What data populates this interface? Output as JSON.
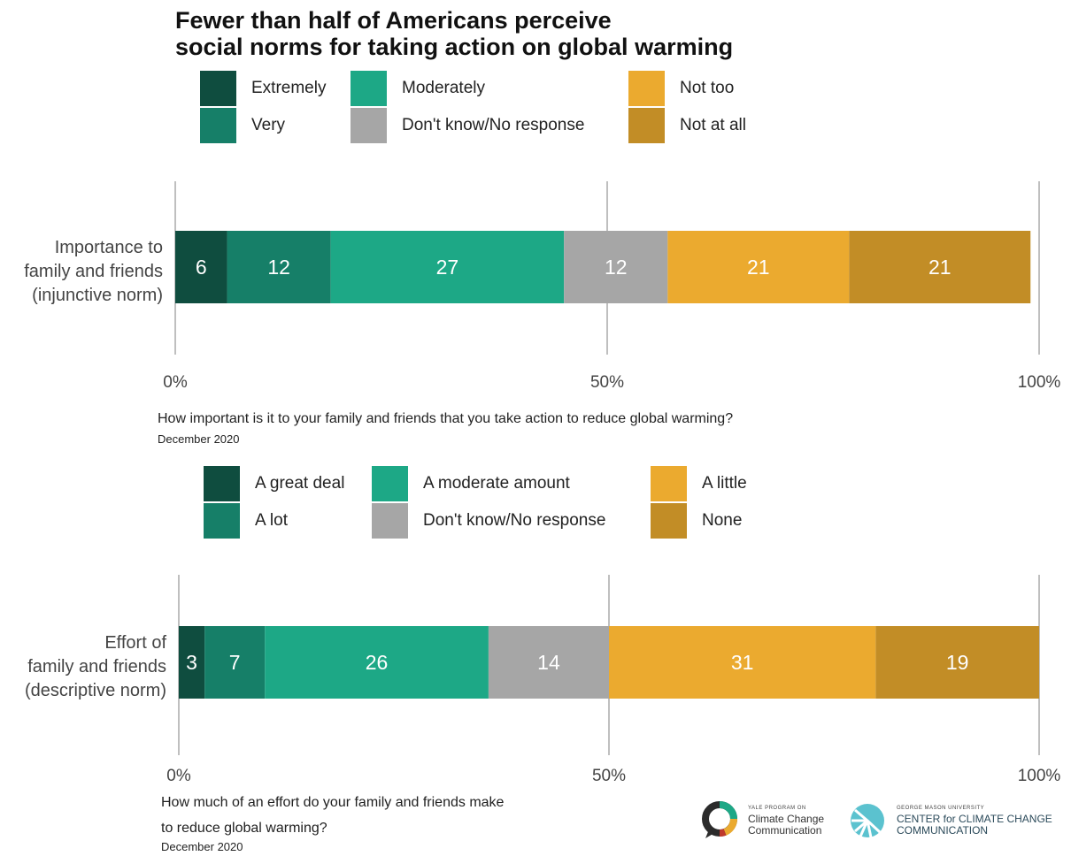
{
  "title": "Fewer than half of Americans perceive social norms for taking action on global warming",
  "title_lines": [
    "Fewer than half of Americans perceive",
    "social norms for taking action on global warming"
  ],
  "colors": {
    "dark_green": "#0f4d3f",
    "mid_green": "#167f68",
    "light_green": "#1da886",
    "gray": "#a6a6a6",
    "yellow": "#ebaa2f",
    "brown": "#c28d26",
    "axis": "#bfbfbf"
  },
  "chart_data": [
    {
      "type": "bar",
      "orientation": "horizontal-stacked",
      "category_lines": [
        "Importance to",
        "family and friends",
        "(injunctive norm)"
      ],
      "categories": [
        "Importance to family and friends (injunctive norm)"
      ],
      "series": [
        {
          "name": "Extremely",
          "values": [
            6
          ],
          "color": "#0f4d3f"
        },
        {
          "name": "Very",
          "values": [
            12
          ],
          "color": "#167f68"
        },
        {
          "name": "Moderately",
          "values": [
            27
          ],
          "color": "#1da886"
        },
        {
          "name": "Don't know/No response",
          "values": [
            12
          ],
          "color": "#a6a6a6"
        },
        {
          "name": "Not too",
          "values": [
            21
          ],
          "color": "#ebaa2f"
        },
        {
          "name": "Not at all",
          "values": [
            21
          ],
          "color": "#c28d26"
        }
      ],
      "xlim": [
        0,
        100
      ],
      "xticks": [
        "0%",
        "50%",
        "100%"
      ],
      "grid": true,
      "legend_placement": "top",
      "question": "How important is it to your family and friends that you take action to reduce global warming?",
      "date": "December 2020"
    },
    {
      "type": "bar",
      "orientation": "horizontal-stacked",
      "category_lines": [
        "Effort of",
        "family and friends",
        "(descriptive norm)"
      ],
      "categories": [
        "Effort of family and friends (descriptive norm)"
      ],
      "series": [
        {
          "name": "A great deal",
          "values": [
            3
          ],
          "color": "#0f4d3f"
        },
        {
          "name": "A lot",
          "values": [
            7
          ],
          "color": "#167f68"
        },
        {
          "name": "A moderate amount",
          "values": [
            26
          ],
          "color": "#1da886"
        },
        {
          "name": "Don't know/No response",
          "values": [
            14
          ],
          "color": "#a6a6a6"
        },
        {
          "name": "A little",
          "values": [
            31
          ],
          "color": "#ebaa2f"
        },
        {
          "name": "None",
          "values": [
            19
          ],
          "color": "#c28d26"
        }
      ],
      "xlim": [
        0,
        100
      ],
      "xticks": [
        "0%",
        "50%",
        "100%"
      ],
      "grid": true,
      "legend_placement": "top",
      "question_lines": [
        "How much of an effort do your family and friends make",
        "to reduce global warming?"
      ],
      "question": "How much of an effort do your family and friends make to reduce global warming?",
      "date": "December 2020"
    }
  ],
  "logos": {
    "yale": {
      "small": "YALE PROGRAM ON",
      "line1": "Climate Change",
      "line2": "Communication"
    },
    "gmu": {
      "small": "GEORGE MASON UNIVERSITY",
      "line1": "CENTER for CLIMATE CHANGE",
      "line2": "COMMUNICATION"
    }
  }
}
